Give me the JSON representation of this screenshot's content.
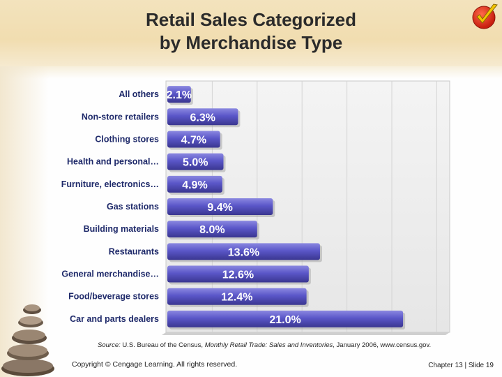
{
  "title_line1": "Retail Sales Categorized",
  "title_line2": "by Merchandise Type",
  "source": {
    "label": "Source:",
    "text1": " U.S. Bureau of the Census, ",
    "italic": "Monthly Retail Trade: Sales and Inventories",
    "text2": ", January 2006, www.census.gov."
  },
  "footer": {
    "copyright": "Copyright © Cengage Learning. All rights reserved.",
    "slide": "Chapter 13 | Slide 19"
  },
  "chart_data": {
    "type": "bar",
    "orientation": "horizontal",
    "categories": [
      "All others",
      "Non-store retailers",
      "Clothing stores",
      "Health  and  personal…",
      "Furniture,  electronics…",
      "Gas stations",
      "Building materials",
      "Restaurants",
      "General  merchandise…",
      "Food/beverage stores",
      "Car and parts dealers"
    ],
    "values": [
      2.1,
      6.3,
      4.7,
      5.0,
      4.9,
      9.4,
      8.0,
      13.6,
      12.6,
      12.4,
      21.0
    ],
    "data_labels": [
      "2.1%",
      "6.3%",
      "4.7%",
      "5.0%",
      "4.9%",
      "9.4%",
      "8.0%",
      "13.6%",
      "12.6%",
      "12.4%",
      "21.0%"
    ],
    "xlim": [
      0,
      24
    ],
    "grid": true,
    "colors": {
      "bar": "#5a56c8",
      "bar_dark": "#3a3690",
      "bar_light": "#8b88e0",
      "label": "#ffffff"
    }
  }
}
